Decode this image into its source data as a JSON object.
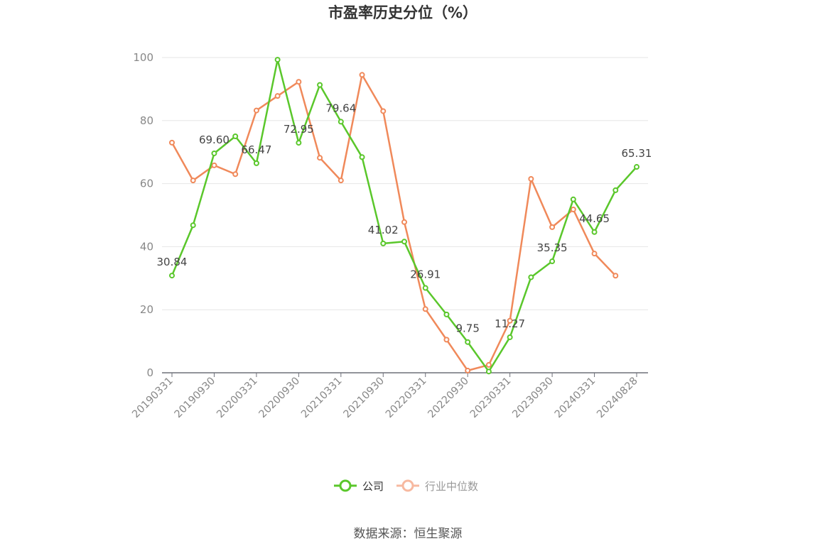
{
  "chart_data": {
    "type": "line",
    "title": "市盈率历史分位（%）",
    "ylim": [
      0,
      100
    ],
    "yticks": [
      0,
      20,
      40,
      60,
      80,
      100
    ],
    "x": [
      "20190331",
      "20190630",
      "20190930",
      "20191231",
      "20200331",
      "20200630",
      "20200930",
      "20201231",
      "20210331",
      "20210630",
      "20210930",
      "20211231",
      "20220331",
      "20220630",
      "20220930",
      "20221231",
      "20230331",
      "20230630",
      "20230930",
      "20231231",
      "20240331",
      "20240630",
      "20240828"
    ],
    "xtick_labels": [
      "20190331",
      "20190930",
      "20200331",
      "20200930",
      "20210331",
      "20210930",
      "20220331",
      "20220930",
      "20230331",
      "20230930",
      "20240331",
      "20240828"
    ],
    "grid": true,
    "legend_position": "bottom",
    "series": [
      {
        "name": "公司",
        "color": "#5ac72b",
        "values": [
          30.84,
          46.8,
          69.6,
          75.0,
          66.47,
          99.3,
          72.95,
          91.3,
          79.64,
          68.4,
          41.02,
          41.6,
          26.91,
          18.5,
          9.75,
          0.4,
          11.27,
          30.3,
          35.35,
          55.0,
          44.65,
          57.9,
          65.31
        ],
        "labels": [
          "30.84",
          "",
          "69.60",
          "",
          "66.47",
          "",
          "72.95",
          "",
          "79.64",
          "",
          "41.02",
          "",
          "26.91",
          "",
          "9.75",
          "",
          "11.27",
          "",
          "35.35",
          "",
          "44.65",
          "",
          "65.31"
        ]
      },
      {
        "name": "行业中位数",
        "color": "#f0895a",
        "values": [
          73.0,
          61.0,
          65.8,
          63.0,
          83.2,
          87.8,
          92.3,
          68.2,
          61.0,
          94.5,
          83.0,
          47.8,
          20.2,
          10.5,
          0.7,
          2.5,
          16.5,
          61.5,
          46.2,
          51.8,
          37.8,
          30.8,
          null
        ]
      }
    ]
  },
  "legend": {
    "items": [
      {
        "label": "公司",
        "color": "#5ac72b",
        "active": true
      },
      {
        "label": "行业中位数",
        "color": "#f7b9a0",
        "active": false
      }
    ]
  },
  "source_text": "数据来源：恒生聚源"
}
